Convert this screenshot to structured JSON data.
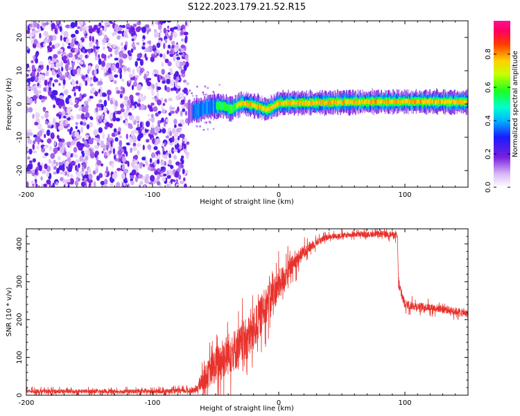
{
  "figure_title": "S122.2023.179.21.52.R15",
  "colors": {
    "snr_line": "#e8322c",
    "frame": "#000000",
    "low_amp": "#8a2be2",
    "high_amp": "#e0201e"
  },
  "chart_data": [
    {
      "type": "heatmap",
      "title": "S122.2023.179.21.52.R15",
      "xlabel": "Height of straight line (km)",
      "ylabel": "Frequency (Hz)",
      "xlim": [
        -200,
        150
      ],
      "ylim": [
        -25,
        25
      ],
      "x_ticks": [
        -200,
        -100,
        0,
        100
      ],
      "x_tick_labels": [
        "-200",
        "-100",
        "0",
        "100"
      ],
      "y_ticks": [
        -20,
        -10,
        0,
        10,
        20
      ],
      "y_tick_labels": [
        "-20",
        "-10",
        "0",
        "10",
        "20"
      ],
      "noise_region_km": [
        -200,
        -72
      ],
      "carrier_ridge": {
        "x": [
          -72,
          -65,
          -55,
          -45,
          -38,
          -30,
          -22,
          -15,
          -10,
          -5,
          0,
          10,
          30,
          60,
          100,
          150
        ],
        "frequency": [
          -2.5,
          -2.0,
          -0.8,
          -0.5,
          -1.5,
          0.2,
          -0.2,
          -1.0,
          -1.8,
          -0.8,
          0.2,
          0.3,
          0.4,
          0.6,
          0.7,
          0.6
        ],
        "peak_amplitude": [
          0.3,
          0.4,
          0.5,
          0.6,
          0.7,
          0.8,
          0.8,
          0.85,
          0.85,
          0.9,
          0.9,
          0.95,
          0.8,
          0.85,
          0.95,
          0.95
        ]
      },
      "colorbar": {
        "label": "Normalized spectral amplitude",
        "range": [
          0.0,
          1.0
        ],
        "ticks": [
          0.0,
          0.2,
          0.4,
          0.6,
          0.8
        ],
        "tick_labels": [
          "0.0",
          "0.2",
          "0.4",
          "0.6",
          "0.8"
        ]
      }
    },
    {
      "type": "line",
      "xlabel": "Height of straight line (km)",
      "ylabel": "SNR (10 * v/v)",
      "xlim": [
        -200,
        150
      ],
      "ylim": [
        0,
        440
      ],
      "x_ticks": [
        -200,
        -100,
        0,
        100
      ],
      "x_tick_labels": [
        "-200",
        "-100",
        "0",
        "100"
      ],
      "y_ticks": [
        0,
        100,
        200,
        300,
        400
      ],
      "y_tick_labels": [
        "0",
        "100",
        "200",
        "300",
        "400"
      ],
      "series": [
        {
          "name": "SNR",
          "x": [
            -200,
            -100,
            -66,
            -60,
            -50,
            -40,
            -30,
            -20,
            -10,
            0,
            10,
            20,
            30,
            40,
            50,
            60,
            70,
            80,
            90,
            94,
            95,
            100,
            110,
            120,
            130,
            140,
            150
          ],
          "values": [
            10,
            10,
            12,
            40,
            80,
            110,
            130,
            170,
            240,
            290,
            340,
            380,
            405,
            420,
            422,
            425,
            425,
            426,
            425,
            420,
            290,
            240,
            235,
            232,
            228,
            222,
            215
          ],
          "spread": [
            8,
            8,
            10,
            40,
            70,
            80,
            80,
            80,
            70,
            60,
            40,
            25,
            15,
            10,
            10,
            10,
            10,
            12,
            12,
            15,
            20,
            18,
            15,
            15,
            15,
            15,
            15
          ]
        }
      ]
    }
  ]
}
